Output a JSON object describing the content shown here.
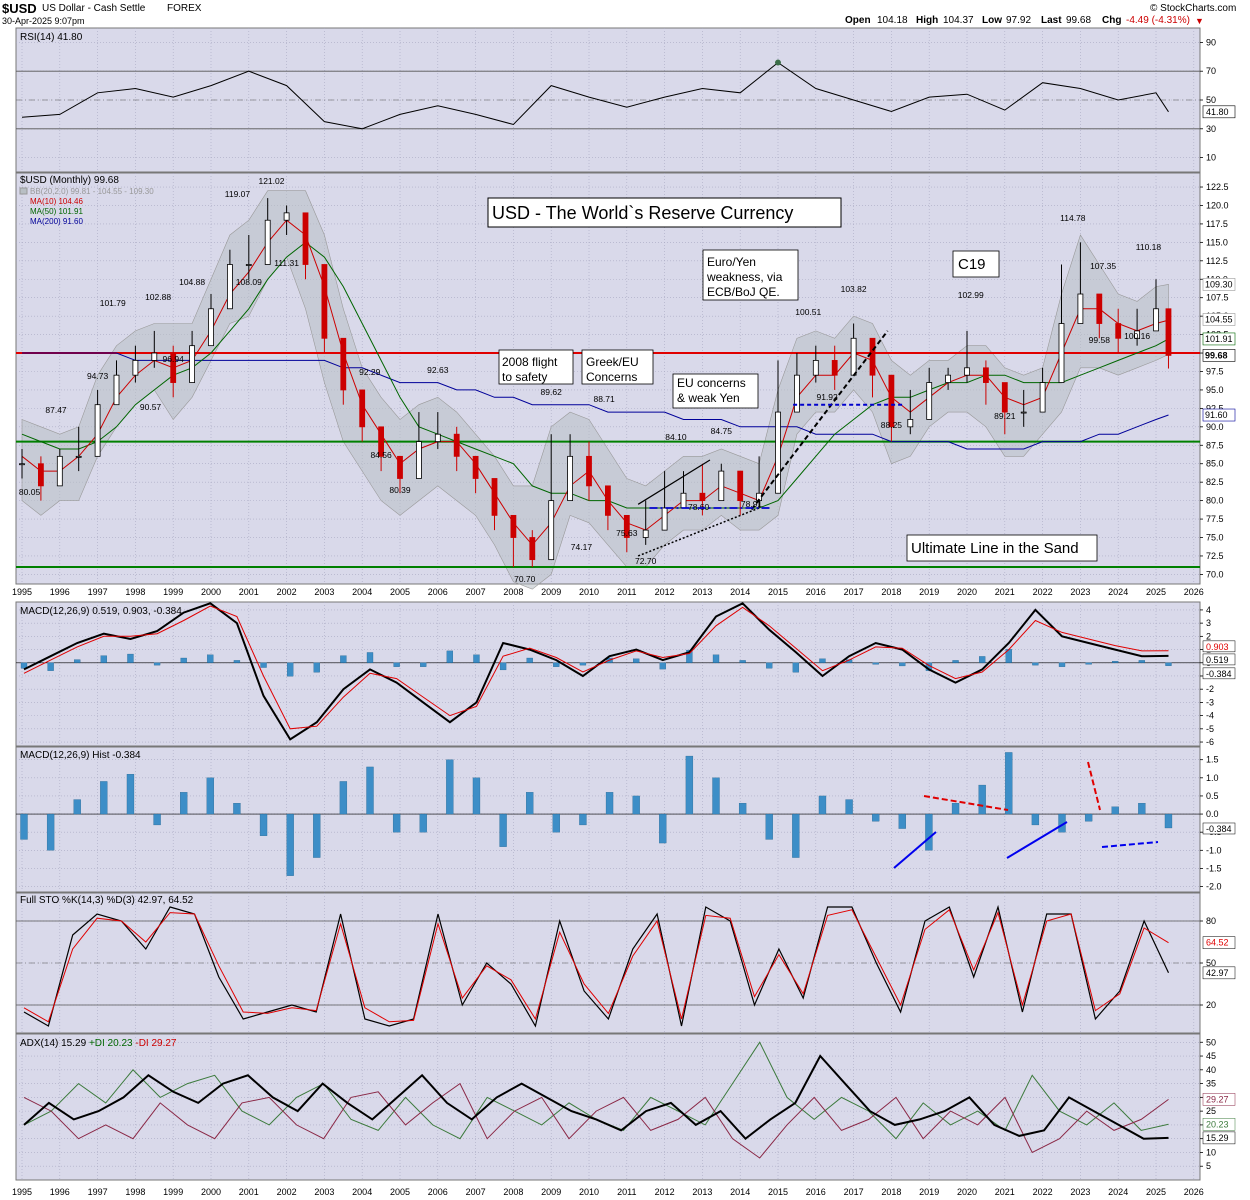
{
  "header": {
    "symbol": "$USD",
    "name": "US Dollar - Cash Settle",
    "exchange": "FOREX",
    "date": "30-Apr-2025 9:07pm",
    "open_label": "Open",
    "open": "104.18",
    "high_label": "High",
    "high": "104.37",
    "low_label": "Low",
    "low": "97.92",
    "last_label": "Last",
    "last": "99.68",
    "chg_label": "Chg",
    "chg": "-4.49 (-4.31%)",
    "copyright": "© StockCharts.com"
  },
  "colors": {
    "panel_bg": "#d9d9ea",
    "grid": "#a9a9c2",
    "price_up": "#000000",
    "price_down": "#cc0000",
    "ma10": "#cc0000",
    "ma50": "#006600",
    "ma200": "#000099",
    "bb_fill": "#b8bfc4",
    "red_line": "#e00000",
    "green_line": "#008000",
    "hist": "#3d8ec7",
    "rsi_over": "#3c6e4a",
    "rsi_under": "#8c3a54"
  },
  "x_axis": {
    "years": [
      "1995",
      "1996",
      "1997",
      "1998",
      "1999",
      "2000",
      "2001",
      "2002",
      "2003",
      "2004",
      "2005",
      "2006",
      "2007",
      "2008",
      "2009",
      "2010",
      "2011",
      "2012",
      "2013",
      "2014",
      "2015",
      "2016",
      "2017",
      "2018",
      "2019",
      "2020",
      "2021",
      "2022",
      "2023",
      "2024",
      "2025",
      "2026"
    ]
  },
  "chart_data": [
    {
      "type": "line",
      "title": "RSI(14) 41.80",
      "y_ticks": [
        "90",
        "70",
        "50",
        "30",
        "10"
      ],
      "ylim": [
        0,
        100
      ],
      "reference_lines": [
        70,
        30
      ],
      "last_value": "41.80",
      "x": [
        1995.0,
        1996.0,
        1997.0,
        1998.0,
        1999.0,
        2000.0,
        2001.0,
        2002.0,
        2003.0,
        2004.0,
        2005.0,
        2006.0,
        2007.0,
        2008.0,
        2009.0,
        2010.0,
        2011.0,
        2012.0,
        2013.0,
        2014.0,
        2015.0,
        2016.0,
        2017.0,
        2018.0,
        2019.0,
        2020.0,
        2021.0,
        2022.0,
        2023.0,
        2024.0,
        2025.0,
        2025.33
      ],
      "values": [
        38,
        40,
        55,
        58,
        52,
        60,
        70,
        60,
        35,
        30,
        40,
        46,
        40,
        33,
        60,
        52,
        45,
        52,
        58,
        55,
        76,
        58,
        50,
        42,
        52,
        54,
        43,
        62,
        58,
        50,
        55,
        41.8
      ]
    },
    {
      "type": "candlestick",
      "title": "$USD (Monthly) 99.68",
      "legend": [
        {
          "name": "BB(20,2.0) 99.81 - 104.55 - 109.30",
          "color": "#999999"
        },
        {
          "name": "MA(10) 104.46",
          "color": "#cc0000"
        },
        {
          "name": "MA(50) 101.91",
          "color": "#006600"
        },
        {
          "name": "MA(200) 91.60",
          "color": "#000099"
        }
      ],
      "y_ticks": [
        "122.5",
        "120.0",
        "117.5",
        "115.0",
        "112.5",
        "110.0",
        "107.5",
        "105.0",
        "102.5",
        "100.0",
        "97.5",
        "95.0",
        "92.5",
        "90.0",
        "87.5",
        "85.0",
        "82.5",
        "80.0",
        "77.5",
        "75.0",
        "72.5",
        "70.0"
      ],
      "ylim": [
        68.7,
        124.4
      ],
      "x": [
        1995.0,
        1995.5,
        1996.0,
        1996.5,
        1997.0,
        1997.5,
        1998.0,
        1998.5,
        1999.0,
        1999.5,
        2000.0,
        2000.5,
        2001.0,
        2001.5,
        2002.0,
        2002.5,
        2003.0,
        2003.5,
        2004.0,
        2004.5,
        2005.0,
        2005.5,
        2006.0,
        2006.5,
        2007.0,
        2007.5,
        2008.0,
        2008.5,
        2009.0,
        2009.5,
        2010.0,
        2010.5,
        2011.0,
        2011.5,
        2012.0,
        2012.5,
        2013.0,
        2013.5,
        2014.0,
        2014.5,
        2015.0,
        2015.5,
        2016.0,
        2016.5,
        2017.0,
        2017.5,
        2018.0,
        2018.5,
        2019.0,
        2019.5,
        2020.0,
        2020.5,
        2021.0,
        2021.5,
        2022.0,
        2022.5,
        2023.0,
        2023.5,
        2024.0,
        2024.5,
        2025.0,
        2025.33
      ],
      "close": [
        85,
        82,
        86,
        86,
        93,
        97,
        99,
        100,
        96,
        101,
        106,
        112,
        112,
        118,
        119,
        112,
        102,
        95,
        90,
        86,
        83,
        88,
        89,
        86,
        83,
        78,
        75,
        72,
        80,
        86,
        82,
        78,
        75,
        76,
        79,
        81,
        80,
        84,
        80,
        81,
        92,
        97,
        99,
        97,
        102,
        97,
        90,
        91,
        96,
        97,
        98,
        96,
        92,
        92,
        96,
        104,
        108,
        104,
        102,
        103,
        106,
        99.68
      ],
      "high": [
        87,
        86,
        87,
        90,
        95,
        99,
        101,
        103,
        101,
        103,
        108,
        114,
        116,
        121,
        120,
        118,
        104,
        98,
        93,
        90,
        86,
        92,
        92,
        90,
        85,
        81,
        77,
        76,
        89,
        89,
        88,
        80,
        77,
        80,
        84,
        84,
        85,
        85,
        82,
        86,
        99,
        100,
        101,
        101,
        104,
        100,
        93,
        95,
        98,
        98,
        103,
        99,
        94,
        95,
        98,
        112,
        115,
        107,
        106,
        106,
        110,
        104.4
      ],
      "low": [
        83,
        80,
        84,
        84,
        91,
        95,
        96,
        98,
        94,
        99,
        104,
        110,
        110,
        116,
        116,
        110,
        100,
        93,
        88,
        84,
        81,
        86,
        87,
        84,
        81,
        76,
        71,
        71,
        79,
        84,
        80,
        76,
        73,
        74,
        77,
        79,
        78,
        82,
        78,
        79,
        90,
        95,
        96,
        95,
        100,
        94,
        88,
        89,
        94,
        95,
        96,
        93,
        89,
        90,
        94,
        102,
        106,
        102,
        100,
        101,
        104,
        97.9
      ],
      "ma10": [
        86,
        84,
        84,
        86,
        89,
        94,
        97,
        99,
        98,
        99,
        103,
        108,
        111,
        115,
        118,
        116,
        109,
        100,
        93,
        89,
        85,
        87,
        88,
        88,
        85,
        81,
        77,
        74,
        77,
        82,
        84,
        80,
        77,
        76,
        78,
        80,
        80,
        82,
        81,
        80,
        86,
        94,
        97,
        97,
        100,
        99,
        94,
        92,
        94,
        96,
        97,
        97,
        94,
        93,
        94,
        100,
        106,
        106,
        104,
        103,
        104,
        104.46
      ],
      "ma50": [
        89,
        88,
        87,
        87,
        88,
        90,
        93,
        95,
        97,
        98,
        100,
        103,
        106,
        110,
        113,
        115,
        113,
        109,
        104,
        99,
        94,
        90,
        89,
        88,
        87,
        86,
        85,
        82,
        81,
        81,
        80,
        80,
        79,
        79,
        79,
        79,
        79,
        79,
        79,
        79,
        80,
        83,
        86,
        89,
        91,
        93,
        94,
        94,
        95,
        96,
        96,
        97,
        97,
        96,
        96,
        96,
        97,
        98,
        99,
        100,
        101,
        101.91
      ],
      "ma200": [
        100,
        100,
        100,
        100,
        100,
        100,
        99,
        99,
        99,
        99,
        99,
        99,
        99,
        99,
        99,
        99,
        99,
        98,
        98,
        97,
        96,
        96,
        96,
        95,
        95,
        94,
        94,
        93,
        93,
        93,
        93,
        92,
        92,
        92,
        92,
        91,
        91,
        91,
        90,
        90,
        90,
        90,
        89,
        89,
        89,
        89,
        88,
        88,
        88,
        88,
        87,
        87,
        87,
        87,
        88,
        88,
        88,
        89,
        89,
        90,
        91,
        91.6
      ],
      "bb_upper": [
        91,
        90,
        89,
        90,
        97,
        101,
        103,
        104,
        104,
        104,
        110,
        116,
        118,
        122,
        122,
        122,
        116,
        106,
        98,
        94,
        91,
        93,
        94,
        92,
        89,
        86,
        82,
        82,
        90,
        92,
        91,
        87,
        83,
        82,
        84,
        86,
        86,
        87,
        86,
        85,
        95,
        102,
        103,
        102,
        105,
        104,
        99,
        97,
        99,
        99,
        101,
        101,
        98,
        97,
        98,
        108,
        116,
        112,
        108,
        107,
        109,
        109.3
      ],
      "bb_lower": [
        80,
        78,
        80,
        80,
        86,
        90,
        93,
        95,
        91,
        94,
        99,
        104,
        105,
        110,
        113,
        106,
        96,
        88,
        84,
        80,
        78,
        80,
        82,
        80,
        78,
        74,
        69,
        68,
        70,
        78,
        77,
        74,
        71,
        71,
        74,
        76,
        76,
        78,
        76,
        76,
        78,
        89,
        92,
        92,
        95,
        92,
        85,
        86,
        90,
        92,
        92,
        90,
        86,
        86,
        89,
        92,
        98,
        98,
        97,
        98,
        99,
        99.81
      ],
      "annotations": [
        "80.05",
        "87.47",
        "94.73",
        "101.79",
        "90.57",
        "102.88",
        "96.94",
        "104.88",
        "119.07",
        "108.09",
        "121.02",
        "111.31",
        "92.29",
        "84.56",
        "80.39",
        "92.63",
        "89.62",
        "70.70",
        "74.17",
        "88.71",
        "75.63",
        "72.70",
        "84.10",
        "78.60",
        "84.75",
        "78.91",
        "100.51",
        "91.92",
        "103.82",
        "88.25",
        "102.99",
        "89.21",
        "114.78",
        "107.35",
        "99.58",
        "110.18",
        "100.16"
      ],
      "callouts": [
        "USD - The World`s Reserve Currency",
        "Euro/Yen weakness, via ECB/BoJ QE.",
        "2008 flight to safety",
        "Greek/EU Concerns",
        "EU concerns & weak Yen",
        "C19",
        "Ultimate Line in the Sand"
      ],
      "horizontal_lines": [
        {
          "value": 100.0,
          "color": "red"
        },
        {
          "value": 88.0,
          "color": "green"
        },
        {
          "value": 71.0,
          "color": "green"
        }
      ],
      "price_labels": [
        "109.30",
        "104.55",
        "101.91",
        "99.68",
        "91.60"
      ]
    },
    {
      "type": "line",
      "title": "MACD(12,26,9) 0.519, 0.903, -0.384",
      "y_ticks": [
        "4",
        "3",
        "2",
        "1",
        "0",
        "-1",
        "-2",
        "-3",
        "-4",
        "-5",
        "-6"
      ],
      "ylim": [
        -6.3,
        4.6
      ],
      "series": [
        {
          "name": "MACD(12,26,9)",
          "values": [
            -0.5,
            0.5,
            1.5,
            2.2,
            1.8,
            2.4,
            3.8,
            4.5,
            3.0,
            -2.5,
            -5.8,
            -4.5,
            -2.0,
            -0.5,
            -1.5,
            -3.0,
            -4.5,
            -3.0,
            1.5,
            1.0,
            0.2,
            -1.0,
            0.5,
            1.0,
            0.2,
            0.8,
            3.5,
            4.5,
            2.5,
            0.8,
            -1.0,
            0.5,
            1.5,
            1.0,
            -0.5,
            -1.5,
            -0.5,
            1.5,
            4.0,
            2.0,
            1.5,
            1.0,
            0.5,
            0.519
          ]
        },
        {
          "name": "Signal",
          "values": [
            -0.8,
            0.2,
            1.2,
            2.0,
            2.0,
            2.2,
            3.2,
            4.3,
            3.5,
            -1.0,
            -5.0,
            -4.8,
            -2.6,
            -0.8,
            -1.2,
            -2.6,
            -4.0,
            -3.3,
            0.5,
            1.1,
            0.4,
            -0.7,
            0.2,
            0.9,
            0.4,
            0.7,
            2.8,
            4.2,
            2.8,
            1.1,
            -0.6,
            0.2,
            1.2,
            1.1,
            -0.2,
            -1.2,
            -0.7,
            1.0,
            3.2,
            2.3,
            1.8,
            1.3,
            0.9,
            0.903
          ]
        }
      ],
      "last_values": [
        "0.903",
        "0.519",
        "-0.384"
      ]
    },
    {
      "type": "bar",
      "title": "MACD(12,26,9) Hist -0.384",
      "y_ticks": [
        "1.5",
        "1.0",
        "0.5",
        "0.0",
        "-0.5",
        "-1.0",
        "-1.5",
        "-2.0"
      ],
      "ylim": [
        -2.15,
        1.85
      ],
      "values": [
        -0.7,
        -1.0,
        0.4,
        0.9,
        1.1,
        -0.3,
        0.6,
        1.0,
        0.3,
        -0.6,
        -1.7,
        -1.2,
        0.9,
        1.3,
        -0.5,
        -0.5,
        1.5,
        1.0,
        -0.9,
        0.6,
        -0.5,
        -0.3,
        0.6,
        0.5,
        -0.8,
        1.6,
        1.0,
        0.3,
        -0.7,
        -1.2,
        0.5,
        0.4,
        -0.2,
        -0.4,
        -1.0,
        0.3,
        0.8,
        1.7,
        -0.3,
        -0.5,
        -0.2,
        0.2,
        0.3,
        -0.384
      ],
      "last_value": "-0.384"
    },
    {
      "type": "line",
      "title": "Full STO %K(14,3) %D(3) 42.97, 64.52",
      "y_ticks": [
        "80",
        "50",
        "20"
      ],
      "ylim": [
        0,
        100
      ],
      "series": [
        {
          "name": "%K(14,3)",
          "values": [
            15,
            5,
            70,
            85,
            80,
            60,
            90,
            85,
            40,
            10,
            15,
            20,
            15,
            85,
            10,
            5,
            10,
            85,
            20,
            50,
            35,
            5,
            80,
            30,
            10,
            60,
            85,
            5,
            90,
            80,
            20,
            60,
            25,
            90,
            90,
            50,
            15,
            80,
            90,
            40,
            90,
            15,
            85,
            85,
            10,
            30,
            80,
            42.97
          ]
        },
        {
          "name": "%D(3)",
          "values": [
            18,
            8,
            60,
            82,
            80,
            65,
            86,
            85,
            48,
            15,
            14,
            18,
            16,
            78,
            18,
            8,
            9,
            78,
            25,
            48,
            38,
            10,
            72,
            35,
            14,
            55,
            80,
            10,
            84,
            82,
            26,
            56,
            28,
            84,
            88,
            54,
            20,
            74,
            88,
            45,
            86,
            20,
            80,
            85,
            16,
            28,
            75,
            64.52
          ]
        }
      ],
      "last_values": [
        "64.52",
        "42.97"
      ]
    },
    {
      "type": "line",
      "title": "ADX(14) 15.29 +DI 20.23 -DI 29.27",
      "y_ticks": [
        "50",
        "45",
        "40",
        "35",
        "30",
        "25",
        "20",
        "15",
        "10",
        "5"
      ],
      "ylim": [
        0,
        53
      ],
      "series": [
        {
          "name": "ADX(14)",
          "values": [
            20,
            28,
            22,
            25,
            30,
            38,
            32,
            28,
            35,
            38,
            30,
            25,
            35,
            28,
            22,
            30,
            38,
            28,
            22,
            30,
            35,
            30,
            25,
            22,
            18,
            25,
            28,
            20,
            25,
            15,
            22,
            28,
            45,
            35,
            25,
            20,
            22,
            25,
            30,
            20,
            16,
            18,
            30,
            25,
            20,
            15,
            15.29
          ]
        },
        {
          "name": "+DI 20.23",
          "values": [
            20,
            25,
            35,
            28,
            40,
            30,
            35,
            38,
            25,
            20,
            30,
            35,
            22,
            18,
            30,
            20,
            15,
            30,
            25,
            20,
            28,
            22,
            18,
            30,
            25,
            20,
            35,
            50,
            30,
            22,
            30,
            25,
            15,
            28,
            20,
            25,
            18,
            38,
            25,
            20,
            28,
            18,
            20.23
          ]
        },
        {
          "name": "-DI 29.27",
          "values": [
            30,
            25,
            15,
            20,
            15,
            28,
            20,
            15,
            28,
            30,
            20,
            15,
            30,
            32,
            20,
            28,
            35,
            15,
            25,
            30,
            15,
            25,
            30,
            18,
            22,
            30,
            15,
            8,
            20,
            30,
            18,
            22,
            30,
            15,
            25,
            20,
            30,
            10,
            15,
            25,
            18,
            22,
            29.27
          ]
        }
      ],
      "last_values": [
        "29.27",
        "20.23",
        "15.29"
      ]
    }
  ]
}
